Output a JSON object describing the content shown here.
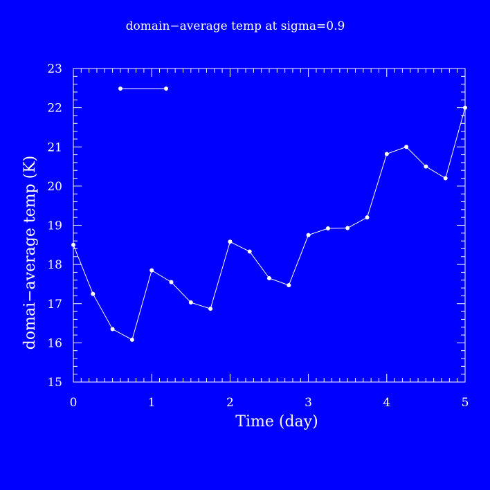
{
  "chart_data": {
    "type": "line",
    "title": "domain−average temp at sigma=0.9",
    "xlabel": "Time (day)",
    "ylabel": "domai−average temp (K)",
    "xlim": [
      0,
      5
    ],
    "ylim": [
      15,
      23
    ],
    "x_ticks": [
      0,
      1,
      2,
      3,
      4,
      5
    ],
    "y_ticks": [
      15,
      16,
      17,
      18,
      19,
      20,
      21,
      22,
      23
    ],
    "grid": false,
    "legend_placement": "top-left",
    "colors": {
      "background": "#0000ff",
      "foreground": "#ffffff"
    },
    "series": [
      {
        "x": [
          0,
          0.25,
          0.5,
          0.75,
          1.0,
          1.25,
          1.5,
          1.75,
          2.0,
          2.25,
          2.5,
          2.75,
          3.0,
          3.25,
          3.5,
          3.75,
          4.0,
          4.25,
          4.5,
          4.75,
          5.0
        ],
        "values": [
          18.5,
          17.25,
          16.35,
          16.08,
          17.85,
          17.55,
          17.03,
          16.87,
          18.58,
          18.33,
          17.65,
          17.47,
          18.75,
          18.92,
          18.93,
          19.2,
          20.82,
          21.0,
          20.5,
          20.2,
          22.0
        ]
      }
    ]
  }
}
